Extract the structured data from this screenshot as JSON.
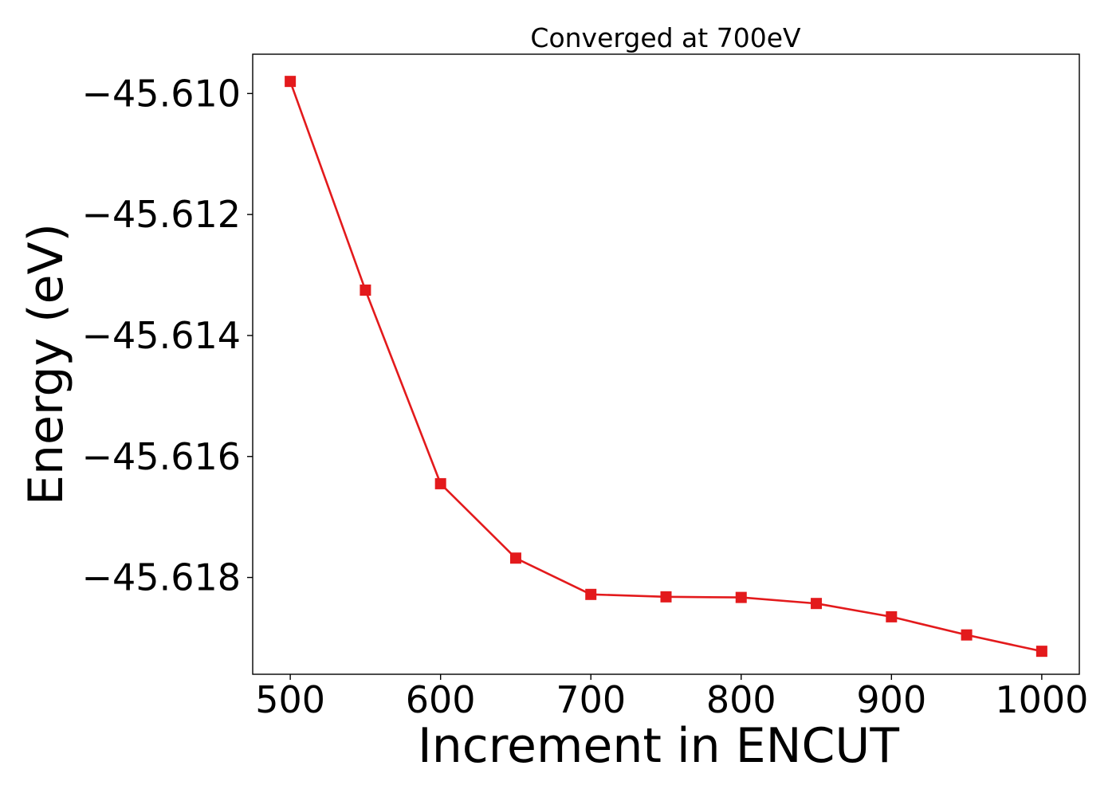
{
  "chart_data": {
    "type": "line",
    "title": "Converged at 700eV",
    "xlabel": "Increment in ENCUT",
    "ylabel": "Energy (eV)",
    "x": [
      500,
      550,
      600,
      650,
      700,
      750,
      800,
      850,
      900,
      950,
      1000
    ],
    "series": [
      {
        "values": [
          -45.6098,
          -45.61325,
          -45.61645,
          -45.61768,
          -45.61828,
          -45.61832,
          -45.61833,
          -45.61843,
          -45.61865,
          -45.61895,
          -45.61922
        ],
        "color": "#e31a1c",
        "marker": "square"
      }
    ],
    "xticks": [
      500,
      600,
      700,
      800,
      900,
      1000
    ],
    "xtick_labels": [
      "500",
      "600",
      "700",
      "800",
      "900",
      "1000"
    ],
    "yticks": [
      -45.61,
      -45.612,
      -45.614,
      -45.616,
      -45.618
    ],
    "ytick_labels": [
      "−45.610",
      "−45.612",
      "−45.614",
      "−45.616",
      "−45.618"
    ],
    "xlim": [
      475,
      1025
    ],
    "ylim": [
      -45.6196,
      -45.60935
    ],
    "grid": false,
    "legend": "none"
  }
}
